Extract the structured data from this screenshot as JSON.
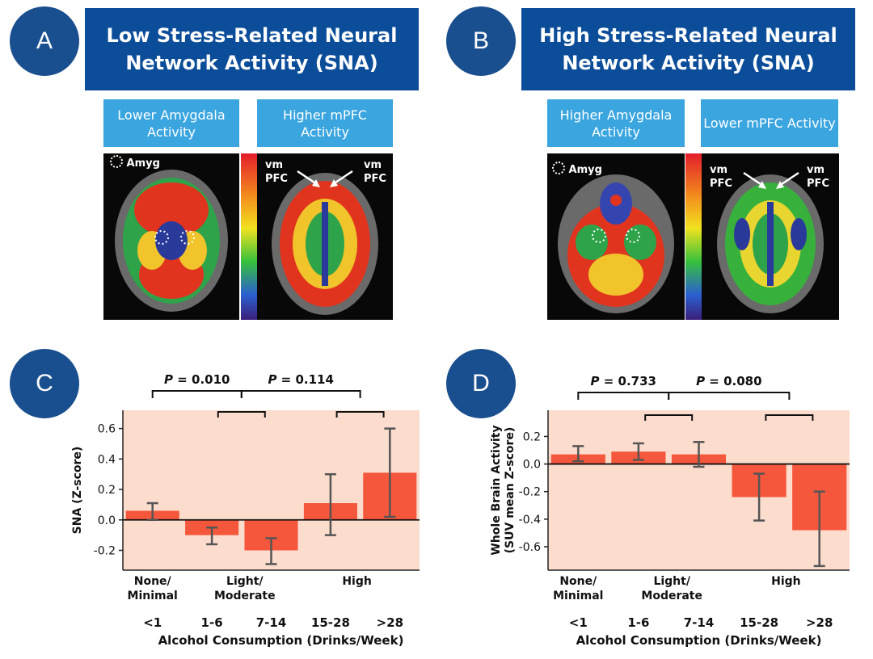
{
  "panel_a": {
    "badge": "A",
    "title": "Low Stress-Related Neural Network Activity (SNA)",
    "left_label": "Lower Amygdala Activity",
    "right_label": "Higher mPFC Activity",
    "amyg_label": "Amyg",
    "vm_label": "vm",
    "pfc_label": "PFC"
  },
  "panel_b": {
    "badge": "B",
    "title": "High Stress-Related Neural Network Activity (SNA)",
    "left_label": "Higher Amygdala Activity",
    "right_label": "Lower mPFC Activity",
    "amyg_label": "Amyg",
    "vm_label": "vm",
    "pfc_label": "PFC"
  },
  "panel_c": {
    "badge": "C"
  },
  "panel_d": {
    "badge": "D"
  },
  "colors": {
    "navy": "#0c4d9a",
    "light_blue": "#3aa5df",
    "plot_bg": "#fcdccd",
    "bar": "#f4573c",
    "error_bar": "#555555"
  },
  "chart_data": [
    {
      "type": "bar",
      "id": "C",
      "categories": [
        "<1",
        "1-6",
        "7-14",
        "15-28",
        ">28"
      ],
      "groups": [
        "None/\nMinimal",
        "Light/\nModerate",
        "High"
      ],
      "values": [
        0.06,
        -0.1,
        -0.2,
        0.11,
        0.31
      ],
      "error_low": [
        0.0,
        -0.16,
        -0.29,
        -0.1,
        0.02
      ],
      "error_high": [
        0.11,
        -0.05,
        -0.12,
        0.3,
        0.6
      ],
      "ylabel": "SNA (Z-score)",
      "xlabel": "Alcohol Consumption (Drinks/Week)",
      "yticks": [
        "0.6",
        "0.4",
        "0.2",
        "0.0",
        "-0.2"
      ],
      "ytick_values": [
        0.6,
        0.4,
        0.2,
        0.0,
        -0.2
      ],
      "ylim": [
        -0.33,
        0.72
      ],
      "p_values": [
        {
          "prefix": "P",
          "text": " = 0.010"
        },
        {
          "prefix": "P",
          "text": " = 0.114"
        }
      ]
    },
    {
      "type": "bar",
      "id": "D",
      "categories": [
        "<1",
        "1-6",
        "7-14",
        "15-28",
        ">28"
      ],
      "groups": [
        "None/\nMinimal",
        "Light/\nModerate",
        "High"
      ],
      "values": [
        0.07,
        0.09,
        0.07,
        -0.24,
        -0.48
      ],
      "error_low": [
        0.02,
        0.03,
        -0.02,
        -0.41,
        -0.74
      ],
      "error_high": [
        0.13,
        0.15,
        0.16,
        -0.07,
        -0.2
      ],
      "ylabel": "Whole Brain Activity\n(SUV mean Z-score)",
      "xlabel": "Alcohol Consumption (Drinks/Week)",
      "yticks": [
        "0.2",
        "0.0",
        "-0.2",
        "-0.4",
        "-0.6"
      ],
      "ytick_values": [
        0.2,
        0.0,
        -0.2,
        -0.4,
        -0.6
      ],
      "ylim": [
        -0.77,
        0.39
      ],
      "p_values": [
        {
          "prefix": "P",
          "text": " = 0.733"
        },
        {
          "prefix": "P",
          "text": " = 0.080"
        }
      ]
    }
  ]
}
